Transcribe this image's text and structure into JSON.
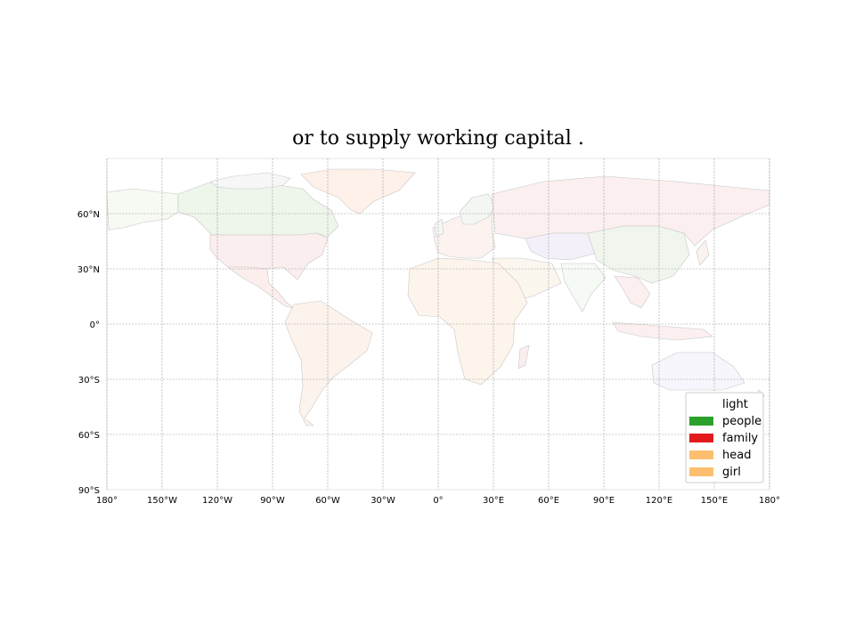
{
  "map": {
    "title": "or to supply working capital .",
    "lon_ticks": [
      "180°",
      "150°W",
      "120°W",
      "90°W",
      "60°W",
      "30°W",
      "0°",
      "30°E",
      "60°E",
      "90°E",
      "120°E",
      "150°E",
      "180°"
    ],
    "lat_ticks": [
      "60°N",
      "30°N",
      "0°",
      "30°S",
      "60°S",
      "90°S"
    ],
    "grid": true,
    "legend_position": "lower-right",
    "legend": [
      {
        "label": "light",
        "color": "#ffffff"
      },
      {
        "label": "people",
        "color": "#2ca02c"
      },
      {
        "label": "family",
        "color": "#e31a1c"
      },
      {
        "label": "head",
        "color": "#fdbf6f"
      },
      {
        "label": "girl",
        "color": "#fdbf6f"
      }
    ]
  }
}
